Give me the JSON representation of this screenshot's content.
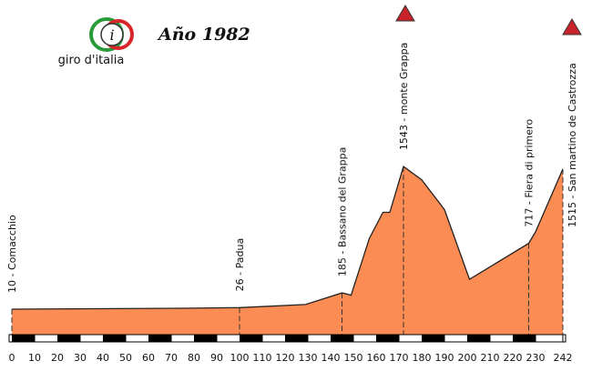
{
  "chart_data": {
    "type": "area",
    "title": "Año 1982",
    "logo": "giro d'italia",
    "x": [
      0,
      75,
      100,
      129,
      145,
      149,
      157,
      163,
      166,
      172,
      180,
      190,
      201,
      227,
      230,
      242
    ],
    "values": [
      10,
      20,
      26,
      60,
      185,
      160,
      770,
      1050,
      1050,
      1543,
      1400,
      1080,
      330,
      717,
      840,
      1515
    ],
    "point_labels": [
      "10 - Comacchio",
      null,
      "26 - Padua",
      null,
      "185 - Bassano del Grappa",
      null,
      null,
      null,
      null,
      "1543 - monte Grappa",
      null,
      null,
      null,
      "717 - Fiera di primero",
      null,
      "1515 - San martino de Castrozza"
    ],
    "color": "#fb8c53",
    "xlim": [
      0,
      242
    ],
    "ylim": [
      0,
      1700
    ],
    "xticks": [
      0,
      10,
      20,
      30,
      40,
      50,
      60,
      70,
      80,
      90,
      100,
      110,
      120,
      130,
      140,
      150,
      160,
      170,
      180,
      190,
      200,
      210,
      220,
      230,
      242
    ]
  }
}
